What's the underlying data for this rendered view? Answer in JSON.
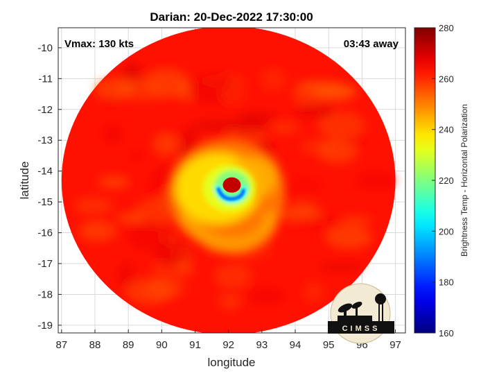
{
  "chart_data": {
    "type": "heatmap",
    "title": "Darian: 20-Dec-2022 17:30:00",
    "xlabel": "longitude",
    "ylabel": "latitude",
    "xlim": [
      86.9,
      97.3
    ],
    "ylim": [
      -19.25,
      -9.35
    ],
    "xticks": [
      87,
      88,
      89,
      90,
      91,
      92,
      93,
      94,
      95,
      96,
      97
    ],
    "yticks": [
      -10,
      -11,
      -12,
      -13,
      -14,
      -15,
      -16,
      -17,
      -18,
      -19
    ],
    "grid": true,
    "annotations": {
      "vmax": "Vmax: 130 kts",
      "time_away": "03:43 away"
    },
    "colorbar": {
      "label": "Brightness Temp - Horizontal Polarization",
      "min": 160,
      "max": 280,
      "ticks": [
        160,
        180,
        200,
        220,
        240,
        260,
        280
      ],
      "colormap": "jet"
    },
    "swath": {
      "center_lon": 92.0,
      "center_lat": -14.3,
      "radius_deg": 5.0,
      "background_temp": 263
    },
    "eye": {
      "lon": 92.1,
      "lat": -14.45,
      "temp": 272
    },
    "eyewall_min_temp": 188,
    "logo": "CIMSS"
  },
  "colors": {
    "axis": "#262626",
    "grid": "#d9d9d9"
  }
}
